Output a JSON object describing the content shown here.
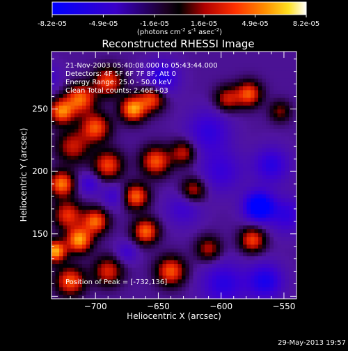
{
  "colorbar": {
    "ticks": [
      "-8.2e-05",
      "-4.9e-05",
      "-1.6e-05",
      "1.6e-05",
      "4.9e-05",
      "8.2e-05"
    ],
    "tick_values": [
      -8.2e-05,
      -4.9e-05,
      -1.6e-05,
      1.6e-05,
      4.9e-05,
      8.2e-05
    ],
    "range": [
      -8.2e-05,
      8.2e-05
    ],
    "unit_main": "(photons cm",
    "unit_sup1": "-2",
    "unit_mid": " s",
    "unit_sup2": "-1",
    "unit_mid2": " asec",
    "unit_sup3": "-2",
    "unit_end": ")"
  },
  "annotations": {
    "time": "21-Nov-2003 05:40:08.000 to 05:43:44.000",
    "detectors": "Detectors: 4F 5F 6F 7F 8F, Att 0",
    "energy": "Energy Range: 25.0 - 50.0 keV",
    "clean": "Clean     Total counts: 2.46E+03",
    "peak": "Position of Peak = [-732,136]"
  },
  "footer": {
    "date": "29-May-2013 19:57"
  },
  "chart_data": {
    "type": "heatmap",
    "title": "Reconstructed RHESSI Image",
    "xlabel": "Heliocentric X (arcsec)",
    "ylabel": "Heliocentric Y (arcsec)",
    "xlim": [
      -735,
      -540
    ],
    "ylim": [
      98,
      296
    ],
    "xticks": [
      -700,
      -650,
      -600,
      -550
    ],
    "xtick_labels": [
      "−700",
      "−650",
      "−600",
      "−550"
    ],
    "yticks": [
      150,
      200,
      250
    ],
    "ytick_labels": [
      "150",
      "200",
      "250"
    ],
    "colormap": "blue-black-red-yellow-white",
    "peak_position": [
      -732,
      136
    ],
    "blobs": [
      {
        "x": -727,
        "y": 248,
        "v": 0.85,
        "s": 7
      },
      {
        "x": -712,
        "y": 258,
        "v": 0.8,
        "s": 8
      },
      {
        "x": -718,
        "y": 220,
        "v": 0.55,
        "s": 9
      },
      {
        "x": -690,
        "y": 272,
        "v": 0.7,
        "s": 8
      },
      {
        "x": -670,
        "y": 250,
        "v": 0.95,
        "s": 7
      },
      {
        "x": -655,
        "y": 258,
        "v": 0.7,
        "s": 7
      },
      {
        "x": -700,
        "y": 235,
        "v": 0.75,
        "s": 8
      },
      {
        "x": -690,
        "y": 205,
        "v": 0.7,
        "s": 8
      },
      {
        "x": -727,
        "y": 190,
        "v": 0.85,
        "s": 7
      },
      {
        "x": -722,
        "y": 165,
        "v": 0.65,
        "s": 8
      },
      {
        "x": -700,
        "y": 160,
        "v": 0.8,
        "s": 7
      },
      {
        "x": -713,
        "y": 145,
        "v": 0.95,
        "s": 7
      },
      {
        "x": -732,
        "y": 136,
        "v": 1.0,
        "s": 6
      },
      {
        "x": -690,
        "y": 120,
        "v": 0.6,
        "s": 8
      },
      {
        "x": -720,
        "y": 112,
        "v": 0.75,
        "s": 8
      },
      {
        "x": -668,
        "y": 180,
        "v": 0.8,
        "s": 7
      },
      {
        "x": -652,
        "y": 208,
        "v": 0.75,
        "s": 8
      },
      {
        "x": -660,
        "y": 152,
        "v": 0.8,
        "s": 7
      },
      {
        "x": -630,
        "y": 215,
        "v": 0.55,
        "s": 7
      },
      {
        "x": -640,
        "y": 120,
        "v": 0.75,
        "s": 8
      },
      {
        "x": -622,
        "y": 185,
        "v": 0.55,
        "s": 7
      },
      {
        "x": -610,
        "y": 138,
        "v": 0.5,
        "s": 7
      },
      {
        "x": -595,
        "y": 258,
        "v": 0.55,
        "s": 7
      },
      {
        "x": -578,
        "y": 262,
        "v": 0.75,
        "s": 7
      },
      {
        "x": -575,
        "y": 145,
        "v": 0.7,
        "s": 7
      },
      {
        "x": -553,
        "y": 248,
        "v": 0.4,
        "s": 6
      },
      {
        "x": -647,
        "y": 275,
        "v": -0.5,
        "s": 9
      },
      {
        "x": -610,
        "y": 232,
        "v": -0.4,
        "s": 12
      },
      {
        "x": -570,
        "y": 172,
        "v": -0.95,
        "s": 8
      },
      {
        "x": -560,
        "y": 205,
        "v": -0.45,
        "s": 10
      },
      {
        "x": -598,
        "y": 110,
        "v": -0.45,
        "s": 12
      },
      {
        "x": -565,
        "y": 112,
        "v": -0.55,
        "s": 10
      },
      {
        "x": -630,
        "y": 170,
        "v": -0.3,
        "s": 10
      },
      {
        "x": -685,
        "y": 180,
        "v": -0.3,
        "s": 7
      },
      {
        "x": -705,
        "y": 190,
        "v": -0.35,
        "s": 6
      },
      {
        "x": -675,
        "y": 135,
        "v": -0.3,
        "s": 6
      },
      {
        "x": -548,
        "y": 165,
        "v": -0.4,
        "s": 10
      },
      {
        "x": -600,
        "y": 200,
        "v": -0.35,
        "s": 12
      },
      {
        "x": -740,
        "y": 275,
        "v": -0.3,
        "s": 8
      }
    ]
  }
}
